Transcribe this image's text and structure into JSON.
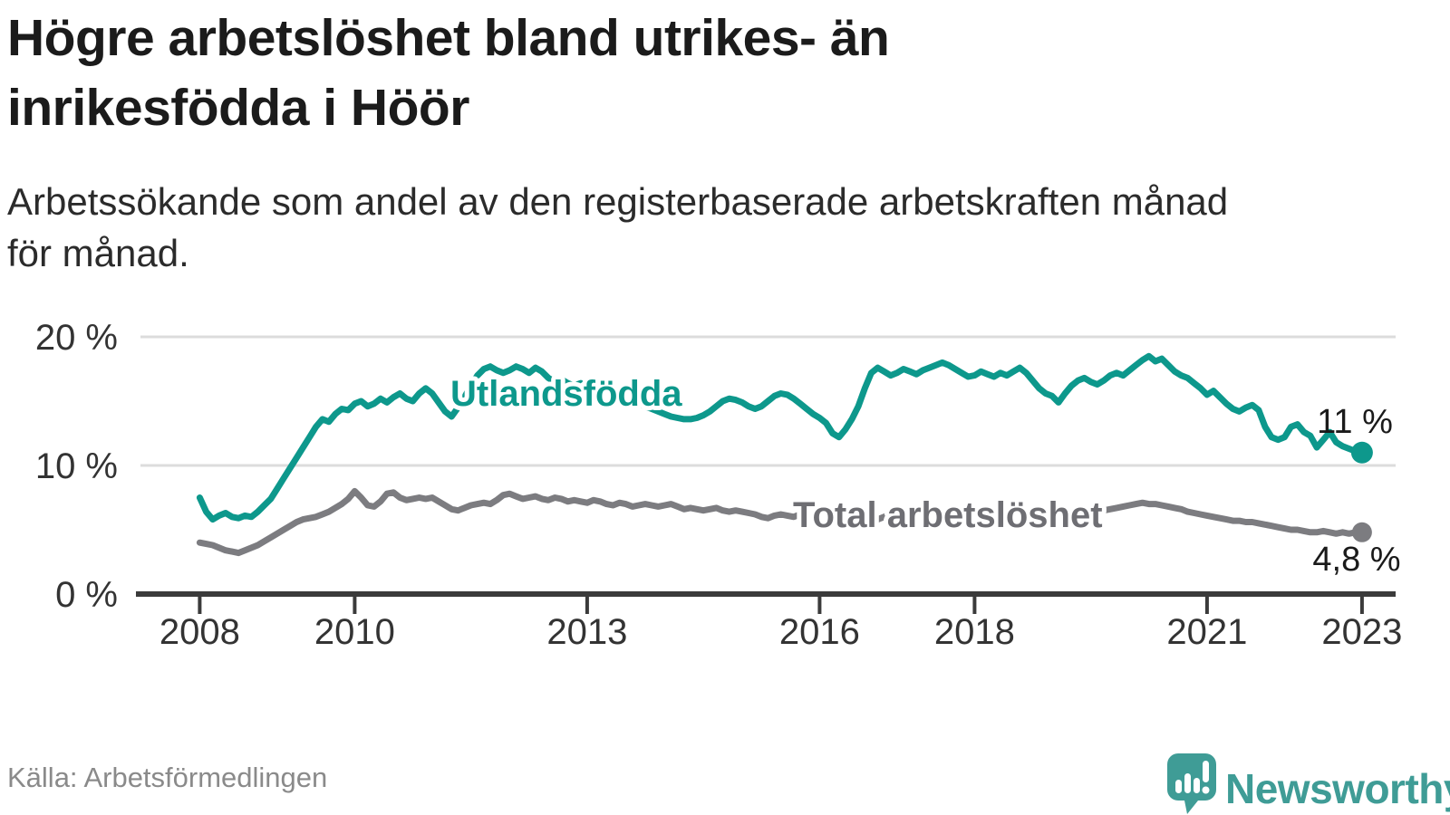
{
  "header": {
    "title_lines": [
      "Högre arbetslöshet bland utrikes- än",
      "inrikesfödda i Höör"
    ],
    "subtitle_lines": [
      "Arbetssökande som andel av den registerbaserade arbetskraften månad",
      "för månad."
    ]
  },
  "footer": {
    "source": "Källa: Arbetsförmedlingen",
    "brand_name": "Newsworthy"
  },
  "colors": {
    "foreign_line": "#0D988C",
    "total_line": "#7C7C80",
    "total_label": "#6E6E73",
    "axis": "#3B3B3B",
    "grid": "#DCDCDC",
    "tick_text": "#333333",
    "end_label_text": "#1A1A1A",
    "brand_teal": "#3F9C96",
    "source_text": "#8A8A8A"
  },
  "chart_data": {
    "type": "line",
    "title": "Högre arbetslöshet bland utrikes- än inrikesfödda i Höör",
    "subtitle": "Arbetssökande som andel av den registerbaserade arbetskraften månad för månad.",
    "unit": "%",
    "x_start_year": 2008,
    "x_step_months": 1,
    "xlim": [
      2008,
      2023.6
    ],
    "ylim": [
      0,
      21.5
    ],
    "grid": "horizontal",
    "legend_position": "inline",
    "y_ticks": [
      {
        "value": 0,
        "label": "0 %"
      },
      {
        "value": 10,
        "label": "10 %"
      },
      {
        "value": 20,
        "label": "20 %"
      }
    ],
    "x_ticks": [
      {
        "value": 2008,
        "label": "2008"
      },
      {
        "value": 2010,
        "label": "2010"
      },
      {
        "value": 2013,
        "label": "2013"
      },
      {
        "value": 2016,
        "label": "2016"
      },
      {
        "value": 2018,
        "label": "2018"
      },
      {
        "value": 2021,
        "label": "2021"
      },
      {
        "value": 2023,
        "label": "2023"
      }
    ],
    "series": [
      {
        "name": "Utlandsfödda",
        "color": "#0D988C",
        "end_label": "11 %",
        "end_value": 11,
        "values": [
          7.5,
          6.4,
          5.8,
          6.1,
          6.3,
          6.0,
          5.9,
          6.1,
          6.0,
          6.4,
          6.9,
          7.4,
          8.2,
          9.0,
          9.8,
          10.6,
          11.4,
          12.2,
          13.0,
          13.6,
          13.4,
          14.0,
          14.4,
          14.3,
          14.8,
          15.0,
          14.6,
          14.8,
          15.2,
          14.9,
          15.3,
          15.6,
          15.2,
          15.0,
          15.6,
          16.0,
          15.6,
          14.9,
          14.2,
          13.8,
          14.5,
          15.3,
          16.2,
          17.0,
          17.5,
          17.7,
          17.4,
          17.2,
          17.4,
          17.7,
          17.5,
          17.2,
          17.6,
          17.3,
          16.8,
          16.5,
          16.7,
          16.4,
          16.2,
          16.4,
          16.1,
          15.9,
          15.7,
          15.6,
          15.4,
          15.2,
          15.1,
          14.9,
          14.8,
          14.6,
          14.4,
          14.2,
          14.0,
          13.8,
          13.7,
          13.6,
          13.6,
          13.7,
          13.9,
          14.2,
          14.6,
          15.0,
          15.2,
          15.1,
          14.9,
          14.6,
          14.4,
          14.6,
          15.0,
          15.4,
          15.6,
          15.5,
          15.2,
          14.8,
          14.4,
          14.0,
          13.7,
          13.3,
          12.5,
          12.2,
          12.8,
          13.6,
          14.6,
          16.0,
          17.2,
          17.6,
          17.3,
          17.0,
          17.2,
          17.5,
          17.3,
          17.1,
          17.4,
          17.6,
          17.8,
          18.0,
          17.8,
          17.5,
          17.2,
          16.9,
          17.0,
          17.3,
          17.1,
          16.9,
          17.2,
          17.0,
          17.3,
          17.6,
          17.2,
          16.6,
          16.0,
          15.6,
          15.4,
          14.9,
          15.6,
          16.2,
          16.6,
          16.8,
          16.5,
          16.3,
          16.6,
          17.0,
          17.2,
          17.0,
          17.4,
          17.8,
          18.2,
          18.5,
          18.1,
          18.3,
          17.8,
          17.3,
          17.0,
          16.8,
          16.4,
          16.0,
          15.5,
          15.8,
          15.3,
          14.8,
          14.4,
          14.2,
          14.5,
          14.7,
          14.3,
          13.0,
          12.2,
          12.0,
          12.2,
          13.0,
          13.2,
          12.6,
          12.3,
          11.4,
          12.0,
          12.6,
          11.8,
          11.5,
          11.3,
          11.1,
          11.0
        ]
      },
      {
        "name": "Total arbetslöshet",
        "color": "#7C7C80",
        "end_label": "4,8 %",
        "end_value": 4.8,
        "values": [
          4.0,
          3.9,
          3.8,
          3.6,
          3.4,
          3.3,
          3.2,
          3.4,
          3.6,
          3.8,
          4.1,
          4.4,
          4.7,
          5.0,
          5.3,
          5.6,
          5.8,
          5.9,
          6.0,
          6.2,
          6.4,
          6.7,
          7.0,
          7.4,
          8.0,
          7.5,
          6.9,
          6.8,
          7.2,
          7.8,
          7.9,
          7.5,
          7.3,
          7.4,
          7.5,
          7.4,
          7.5,
          7.2,
          6.9,
          6.6,
          6.5,
          6.7,
          6.9,
          7.0,
          7.1,
          7.0,
          7.3,
          7.7,
          7.8,
          7.6,
          7.4,
          7.5,
          7.6,
          7.4,
          7.3,
          7.5,
          7.4,
          7.2,
          7.3,
          7.2,
          7.1,
          7.3,
          7.2,
          7.0,
          6.9,
          7.1,
          7.0,
          6.8,
          6.9,
          7.0,
          6.9,
          6.8,
          6.9,
          7.0,
          6.8,
          6.6,
          6.7,
          6.6,
          6.5,
          6.6,
          6.7,
          6.5,
          6.4,
          6.5,
          6.4,
          6.3,
          6.2,
          6.0,
          5.9,
          6.1,
          6.2,
          6.1,
          6.0,
          6.2,
          6.3,
          6.2,
          6.3,
          6.1,
          5.9,
          5.7,
          5.5,
          5.6,
          5.4,
          5.3,
          5.5,
          5.8,
          6.0,
          6.2,
          6.4,
          6.5,
          6.4,
          6.3,
          6.4,
          6.5,
          6.4,
          6.3,
          6.4,
          6.5,
          6.4,
          6.4,
          6.4,
          6.5,
          6.4,
          6.3,
          6.4,
          6.4,
          6.5,
          6.4,
          6.3,
          6.2,
          6.2,
          6.2,
          6.2,
          6.3,
          6.3,
          6.4,
          6.4,
          6.5,
          6.4,
          6.5,
          6.5,
          6.6,
          6.7,
          6.8,
          6.9,
          7.0,
          7.1,
          7.0,
          7.0,
          6.9,
          6.8,
          6.7,
          6.6,
          6.4,
          6.3,
          6.2,
          6.1,
          6.0,
          5.9,
          5.8,
          5.7,
          5.7,
          5.6,
          5.6,
          5.5,
          5.4,
          5.3,
          5.2,
          5.1,
          5.0,
          5.0,
          4.9,
          4.8,
          4.8,
          4.9,
          4.8,
          4.7,
          4.8,
          4.7,
          4.8,
          4.8
        ]
      }
    ]
  }
}
